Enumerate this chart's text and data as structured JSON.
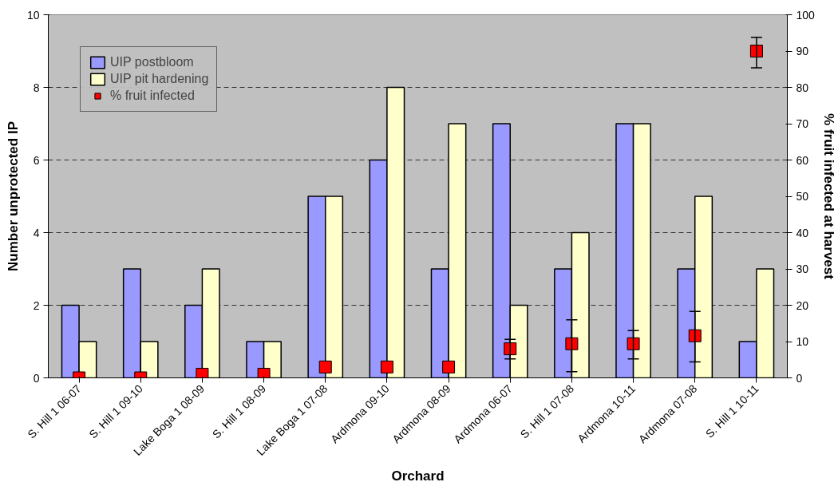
{
  "chart_data": {
    "type": "bar",
    "xlabel": "Orchard",
    "ylabel": "Number unprotected IP",
    "y2label": "% fruit infected at harvest",
    "categories": [
      "S. Hill 1 06-07",
      "S. Hill 1 09-10",
      "Lake Boga 1 08-09",
      "S. Hill 1 08-09",
      "Lake Boga 1 07-08",
      "Ardmona 09-10",
      "Ardmona 08-09",
      "Ardmona 06-07",
      "S. Hill 1 07-08",
      "Ardmona 10-11",
      "Ardmona 07-08",
      "S. Hill 1 10-11"
    ],
    "series": [
      {
        "name": "UIP postbloom",
        "color": "#9999ff",
        "values": [
          2,
          3,
          2,
          1,
          5,
          6,
          3,
          7,
          3,
          7,
          3,
          1
        ]
      },
      {
        "name": "UIP pit hardening",
        "color": "#ffffcc",
        "values": [
          1,
          1,
          3,
          1,
          5,
          8,
          7,
          2,
          4,
          7,
          5,
          3
        ]
      },
      {
        "name": "% fruit infected",
        "type": "scatter",
        "axis": "y2",
        "marker": "square",
        "color": "#ff0000",
        "values": [
          0,
          0,
          1,
          1,
          3,
          3,
          3,
          8,
          9.4,
          9.4,
          11.6,
          90
        ],
        "errors": [
          null,
          null,
          null,
          null,
          null,
          null,
          null,
          [
            5.2,
            10.6
          ],
          [
            1.7,
            16
          ],
          [
            5.2,
            13
          ],
          [
            4.4,
            18.3
          ],
          [
            85.4,
            93.8
          ]
        ]
      }
    ],
    "ylim": [
      0,
      10
    ],
    "yticks": [
      0,
      2,
      4,
      6,
      8,
      10
    ],
    "y2lim": [
      0,
      100
    ],
    "y2ticks": [
      0,
      10,
      20,
      30,
      40,
      50,
      60,
      70,
      80,
      90,
      100
    ],
    "grid": "y",
    "legend": "top left"
  }
}
